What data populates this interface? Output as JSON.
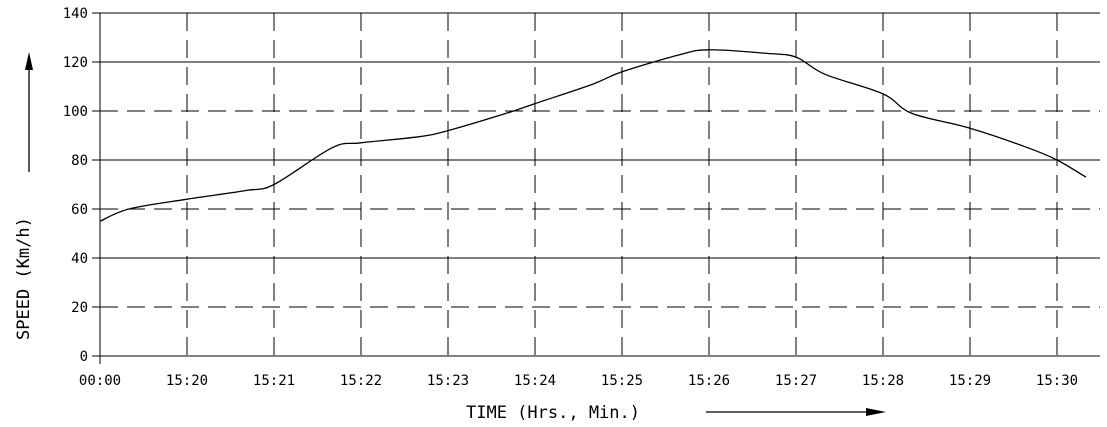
{
  "chart_data": {
    "type": "line",
    "xlabel": "TIME (Hrs., Min.)",
    "ylabel": "SPEED (Km/h)",
    "x_ticks": [
      "00:00",
      "15:20",
      "15:21",
      "15:22",
      "15:23",
      "15:24",
      "15:25",
      "15:26",
      "15:27",
      "15:28",
      "15:29",
      "15:30"
    ],
    "y_ticks": [
      0,
      20,
      40,
      60,
      80,
      100,
      120,
      140
    ],
    "ylim": [
      0,
      140
    ],
    "grid": true,
    "series": [
      {
        "values_x_min_from_00_00": [],
        "points": [
          [
            "00:00",
            55
          ],
          [
            "15:19:20",
            60
          ],
          [
            "15:20",
            64
          ],
          [
            "15:20:40",
            67.5
          ],
          [
            "15:21",
            70
          ],
          [
            "15:21:40",
            85
          ],
          [
            "15:22",
            87
          ],
          [
            "15:22:40",
            89.5
          ],
          [
            "15:23",
            92
          ],
          [
            "15:23:40",
            99
          ],
          [
            "15:24",
            103
          ],
          [
            "15:24:40",
            111
          ],
          [
            "15:25",
            116
          ],
          [
            "15:25:40",
            123
          ],
          [
            "15:26",
            125
          ],
          [
            "15:26:40",
            123.5
          ],
          [
            "15:27",
            122
          ],
          [
            "15:27:20",
            115
          ],
          [
            "15:28",
            107
          ],
          [
            "15:28:20",
            99
          ],
          [
            "15:29",
            93
          ],
          [
            "15:29:40",
            85
          ],
          [
            "15:30",
            80
          ],
          [
            "15:30:20",
            73
          ]
        ]
      }
    ]
  }
}
